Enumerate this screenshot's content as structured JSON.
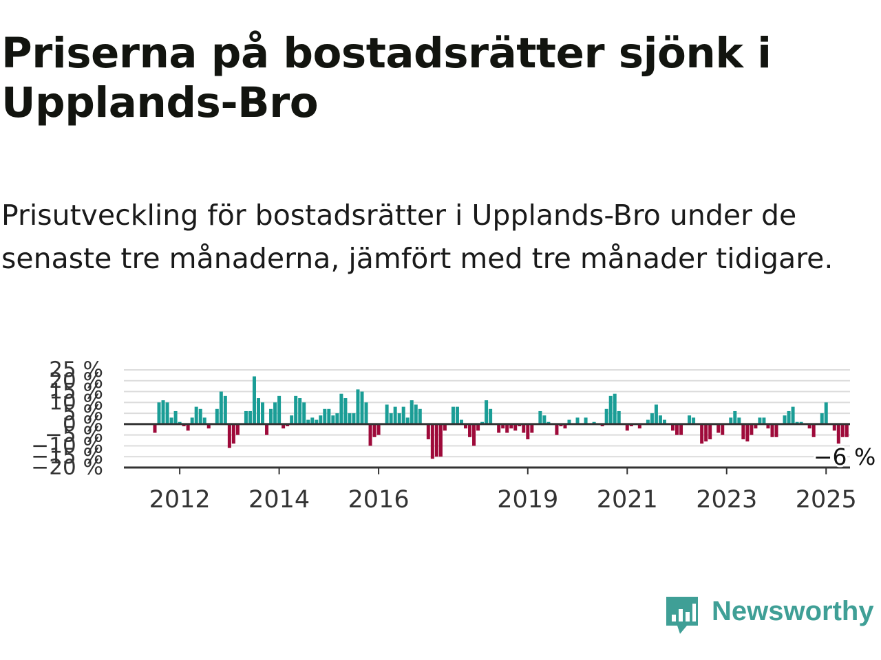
{
  "title": "Priserna på bostadsrätter sjönk i Upplands-Bro",
  "subtitle": "Prisutveckling för bostadsrätter i Upplands-Bro under de senaste tre månaderna, jämfört med tre månader tidigare.",
  "brand": {
    "name": "Newsworthy",
    "color": "#3f9f96"
  },
  "chart_data": {
    "type": "bar",
    "ylim": [
      -20,
      25
    ],
    "y_ticks": [
      25,
      20,
      15,
      10,
      5,
      0,
      -5,
      -10,
      -15,
      -20
    ],
    "y_tick_labels": [
      "25 %",
      "20 %",
      "15 %",
      "10 %",
      "5 %",
      "0 %",
      "−5 %",
      "−10 %",
      "−15 %",
      "−20 %"
    ],
    "x_tick_labels": [
      "2012",
      "2014",
      "2016",
      "2019",
      "2021",
      "2023",
      "2025"
    ],
    "x_tick_index": [
      6,
      30,
      54,
      90,
      114,
      138,
      162
    ],
    "colors": {
      "positive": "#1a9d96",
      "negative": "#9e0a3a"
    },
    "grid": true,
    "last_value_label": "−6 %",
    "values": [
      -4,
      10,
      11,
      10,
      3,
      6,
      1,
      -1,
      -3,
      3,
      8,
      7,
      3,
      -2,
      0,
      7,
      15,
      13,
      -11,
      -9,
      -5,
      0,
      6,
      6,
      22,
      12,
      10,
      -5,
      7,
      10,
      13,
      -2,
      -1,
      4,
      13,
      12,
      10,
      2,
      3,
      2,
      4,
      7,
      7,
      4,
      5,
      14,
      12,
      5,
      5,
      16,
      15,
      10,
      -10,
      -6,
      -5,
      0,
      9,
      5,
      8,
      5,
      8,
      3,
      11,
      9,
      7,
      0,
      -7,
      -16,
      -15,
      -15,
      -3,
      0,
      8,
      8,
      2,
      -2,
      -6,
      -10,
      -3,
      1,
      11,
      7,
      0,
      -4,
      -2,
      -4,
      -2,
      -3,
      -1,
      -4,
      -7,
      -4,
      0,
      6,
      4,
      1,
      0,
      -5,
      -1,
      -2,
      2,
      0,
      3,
      0,
      3,
      0,
      1,
      0,
      -1,
      7,
      13,
      14,
      6,
      0,
      -3,
      -1,
      0,
      -2,
      0,
      2,
      5,
      9,
      4,
      2,
      0,
      -3,
      -5,
      -5,
      0,
      4,
      3,
      0,
      -9,
      -8,
      -7,
      0,
      -4,
      -5,
      0,
      3,
      6,
      3,
      -7,
      -8,
      -5,
      -2,
      3,
      3,
      -2,
      -6,
      -6,
      0,
      4,
      6,
      8,
      1,
      1,
      0,
      -2,
      -6,
      0,
      5,
      10,
      0,
      -3,
      -9,
      -6,
      -6
    ]
  }
}
